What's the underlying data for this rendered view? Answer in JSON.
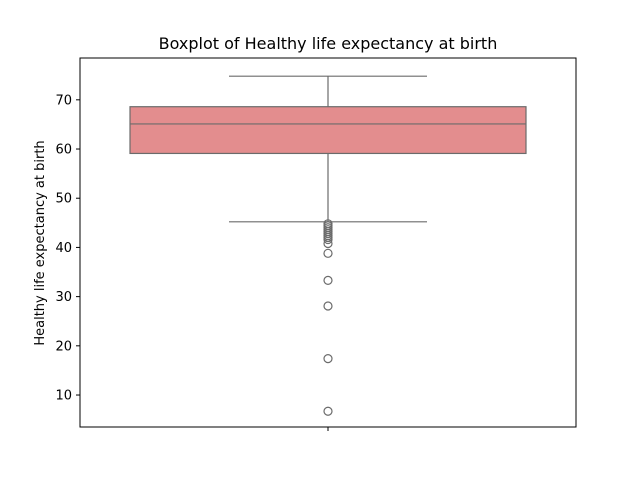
{
  "chart_data": {
    "type": "boxplot",
    "title": "Boxplot of Healthy life expectancy at birth",
    "xlabel": "",
    "ylabel": "Healthy life expectancy at birth",
    "ylim": [
      3.5,
      78.5
    ],
    "yticks": [
      10,
      20,
      30,
      40,
      50,
      60,
      70
    ],
    "grid": false,
    "colors": {
      "box_fill": "#e38d8e",
      "line": "#6b6b6b",
      "axes": "#000000",
      "flier_stroke": "#6b6b6b"
    },
    "box": {
      "whisker_low": 45.2,
      "q1": 59.1,
      "median": 65.1,
      "q3": 68.6,
      "whisker_high": 74.8
    },
    "outliers": [
      44.8,
      44.4,
      44.0,
      43.6,
      43.2,
      42.8,
      42.4,
      42.0,
      41.6,
      40.8,
      38.8,
      33.3,
      28.1,
      17.4,
      6.7
    ]
  }
}
